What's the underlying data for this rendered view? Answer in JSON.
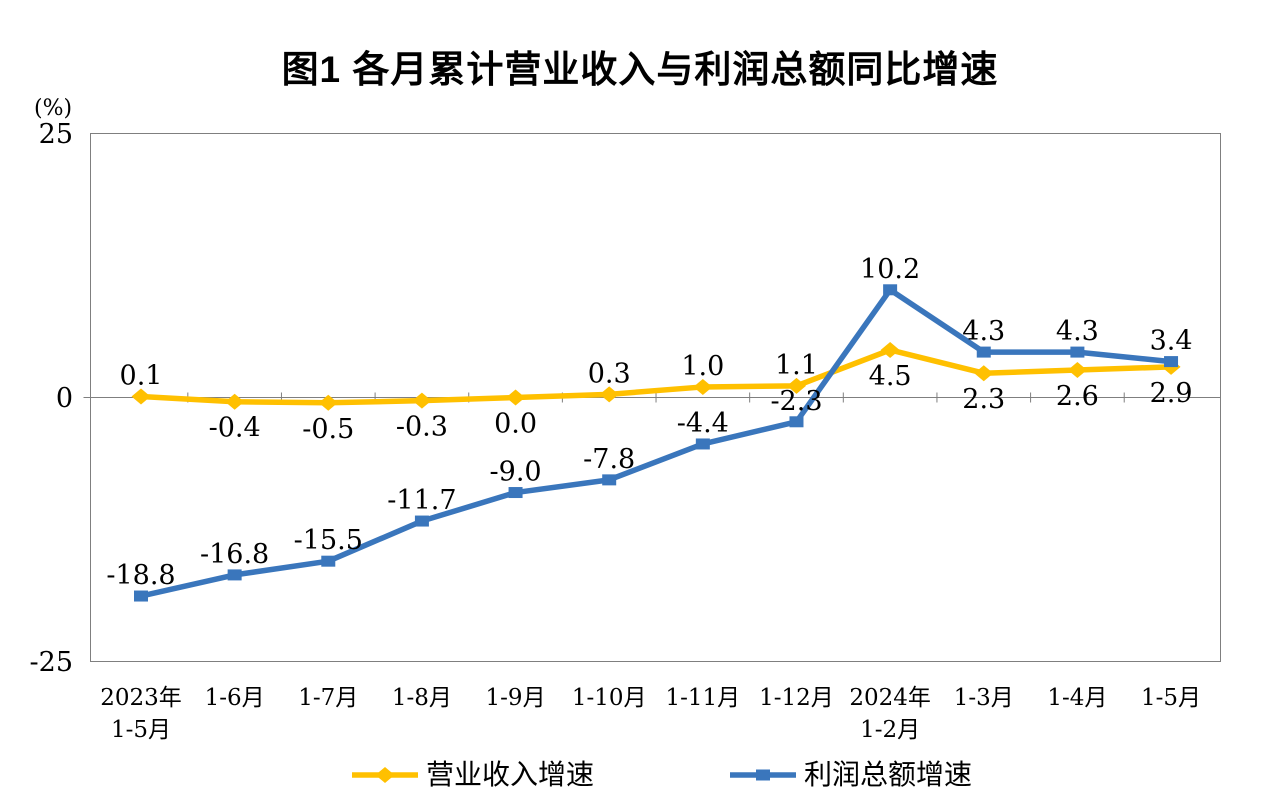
{
  "chart": {
    "title": "图1  各月累计营业收入与利润总额同比增速",
    "y_unit": "(%)",
    "colors": {
      "revenue": "#FFC000",
      "profit": "#3A76BC",
      "axis": "#7F7F7F",
      "text": "#000000"
    }
  },
  "chart_data": {
    "type": "line",
    "title": "图1  各月累计营业收入与利润总额同比增速",
    "y_unit": "(%)",
    "ylim": [
      -25,
      25
    ],
    "y_ticks": [
      25,
      0,
      -25
    ],
    "grid": false,
    "legend_position": "bottom",
    "categories": [
      "2023年\n1-5月",
      "1-6月",
      "1-7月",
      "1-8月",
      "1-9月",
      "1-10月",
      "1-11月",
      "1-12月",
      "2024年\n1-2月",
      "1-3月",
      "1-4月",
      "1-5月"
    ],
    "series": [
      {
        "name": "营业收入增速",
        "color": "#FFC000",
        "marker": "diamond",
        "values": [
          0.1,
          -0.4,
          -0.5,
          -0.3,
          0.0,
          0.3,
          1.0,
          1.1,
          4.5,
          2.3,
          2.6,
          2.9
        ],
        "label_position": [
          "above",
          "below",
          "below",
          "below",
          "below",
          "above",
          "above",
          "above",
          "below",
          "below",
          "below",
          "below"
        ]
      },
      {
        "name": "利润总额增速",
        "color": "#3A76BC",
        "marker": "square",
        "values": [
          -18.8,
          -16.8,
          -15.5,
          -11.7,
          -9.0,
          -7.8,
          -4.4,
          -2.3,
          10.2,
          4.3,
          4.3,
          3.4
        ],
        "label_position": [
          "above",
          "above",
          "above",
          "above",
          "above",
          "above",
          "above",
          "above",
          "above",
          "above",
          "above",
          "above"
        ]
      }
    ]
  }
}
